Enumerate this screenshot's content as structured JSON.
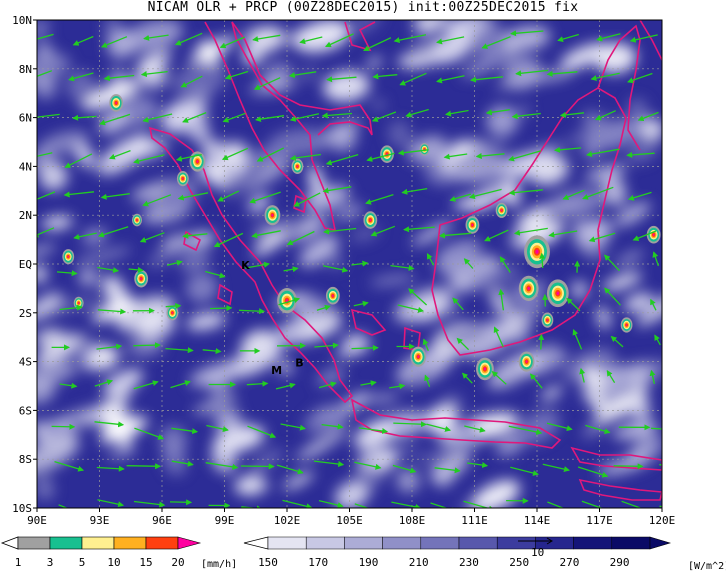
{
  "title": "NICAM OLR + PRCP (00Z28DEC2015) init:00Z25DEC2015 fix",
  "axes": {
    "lon_ticks": [
      "90E",
      "93E",
      "96E",
      "99E",
      "102E",
      "105E",
      "108E",
      "111E",
      "114E",
      "117E",
      "120E"
    ],
    "lat_ticks": [
      "10N",
      "8N",
      "6N",
      "4N",
      "2N",
      "EQ",
      "2S",
      "4S",
      "6S",
      "8S",
      "10S"
    ],
    "lon_range": [
      90,
      120
    ],
    "lat_range": [
      -10,
      10
    ]
  },
  "station_markers": [
    {
      "label": "K",
      "lon": 100.0,
      "lat": -0.2
    },
    {
      "label": "M",
      "lon": 101.5,
      "lat": -4.5
    },
    {
      "label": "B",
      "lon": 102.6,
      "lat": -4.2
    }
  ],
  "precip_legend": {
    "labels": [
      "1",
      "3",
      "5",
      "10",
      "15",
      "20"
    ],
    "unit": "[mm/h]",
    "colors": [
      "#a0a0a0",
      "#18c090",
      "#fff090",
      "#ffb020",
      "#ff4010",
      "#ff00a0"
    ]
  },
  "olr_legend": {
    "labels": [
      "150",
      "170",
      "190",
      "210",
      "230",
      "250",
      "270",
      "290"
    ],
    "unit": "[W/m^2]",
    "vector_ref": "10",
    "colors": [
      "#ffffff",
      "#e4e4f2",
      "#c8c8e4",
      "#acacd6",
      "#9090c8",
      "#7474ba",
      "#5858ac",
      "#3c3c9e",
      "#26268e",
      "#141478",
      "#0a0a66"
    ]
  },
  "colors": {
    "vector": "#22cc22",
    "coastline": "#e0187c",
    "background_cloud_free": "#2c2c96"
  }
}
